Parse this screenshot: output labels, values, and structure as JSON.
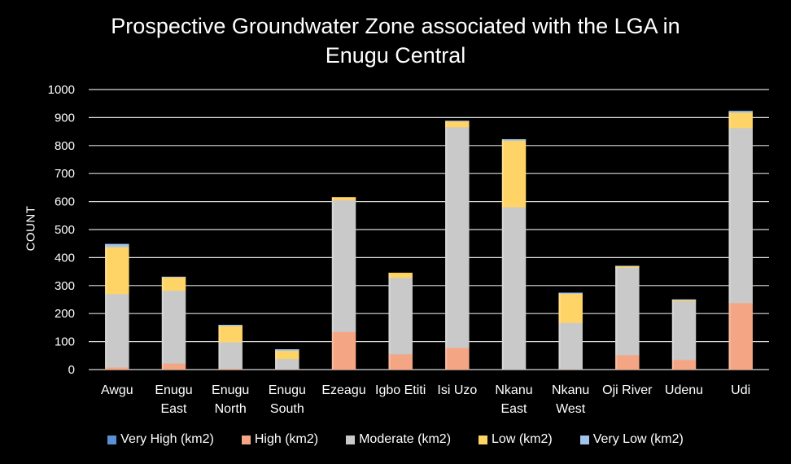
{
  "chart_data": {
    "type": "bar",
    "stacked": true,
    "title_line1": "Prospective Groundwater Zone associated with the LGA in",
    "title_line2": "Enugu Central",
    "ylabel": "COUNT",
    "xlabel": "",
    "ylim": [
      0,
      1000
    ],
    "yticks": [
      0,
      100,
      200,
      300,
      400,
      500,
      600,
      700,
      800,
      900,
      1000
    ],
    "grid": true,
    "legend_position": "bottom",
    "categories": [
      [
        "Awgu"
      ],
      [
        "Enugu",
        "East"
      ],
      [
        "Enugu",
        "North"
      ],
      [
        "Enugu",
        "South"
      ],
      [
        "Ezeagu"
      ],
      [
        "Igbo Etiti"
      ],
      [
        "Isi Uzo"
      ],
      [
        "Nkanu",
        "East"
      ],
      [
        "Nkanu",
        "West"
      ],
      [
        "Oji River"
      ],
      [
        "Udenu"
      ],
      [
        "Udi"
      ]
    ],
    "series": [
      {
        "name": "Very High (km2)",
        "color": "#5b8fd6",
        "values": [
          0,
          0,
          0,
          0,
          0,
          0,
          0,
          0,
          0,
          0,
          0,
          0
        ]
      },
      {
        "name": "High (km2)",
        "color": "#f4a684",
        "values": [
          8,
          22,
          3,
          1,
          135,
          55,
          78,
          0,
          1,
          52,
          35,
          238
        ]
      },
      {
        "name": "Moderate (km2)",
        "color": "#c9c9c9",
        "values": [
          262,
          260,
          95,
          37,
          470,
          273,
          788,
          580,
          166,
          312,
          210,
          625
        ]
      },
      {
        "name": "Low (km2)",
        "color": "#ffd467",
        "values": [
          168,
          48,
          58,
          30,
          10,
          17,
          21,
          238,
          104,
          5,
          4,
          55
        ]
      },
      {
        "name": "Very Low (km2)",
        "color": "#a2c4ec",
        "values": [
          10,
          1,
          3,
          4,
          0,
          0,
          1,
          4,
          3,
          1,
          1,
          5
        ]
      }
    ]
  }
}
